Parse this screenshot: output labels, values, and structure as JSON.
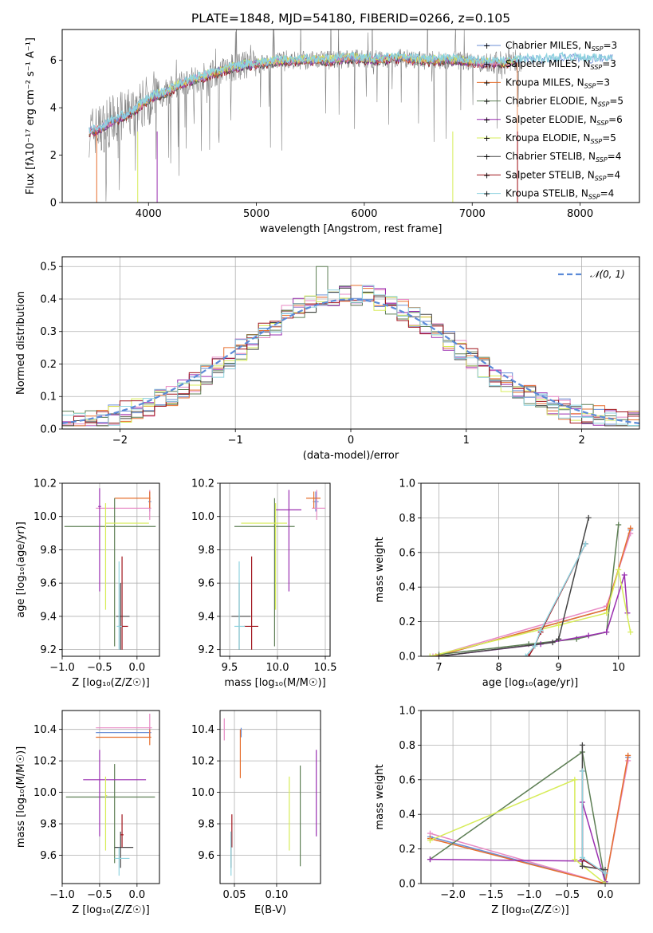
{
  "figure": {
    "title": "PLATE=1848, MJD=54180, FIBERID=0266, z=0.105",
    "colors": {
      "cm": "#6b8fd6",
      "sm": "#e88ac4",
      "km": "#e66f2e",
      "ce": "#5e7f55",
      "se": "#9a2fb0",
      "ke": "#d7ec58",
      "cs": "#454545",
      "ss": "#a0141c",
      "ks": "#8fd3df",
      "norm": "#5b8ad8"
    }
  },
  "chart_data": [
    {
      "id": "spectrum",
      "type": "line",
      "xlabel": "wavelength [Angstrom, rest frame]",
      "ylabel": "Flux [fλ10⁻¹⁷ erg cm⁻² s⁻¹ A⁻¹]",
      "xlim": [
        3200,
        8550
      ],
      "ylim": [
        0,
        7.3
      ],
      "xticks": [
        4000,
        5000,
        6000,
        7000,
        8000
      ],
      "yticks": [
        0,
        2,
        4,
        6
      ],
      "legend_position": "upper right",
      "legend": [
        "Chabrier MILES, N_SSP=3",
        "Salpeter MILES, N_SSP=3",
        "Kroupa MILES, N_SSP=3",
        "Chabrier ELODIE, N_SSP=5",
        "Salpeter ELODIE, N_SSP=6",
        "Kroupa ELODIE, N_SSP=5",
        "Chabrier STELIB, N_SSP=4",
        "Salpeter STELIB, N_SSP=4",
        "Kroupa STELIB, N_SSP=4"
      ],
      "legend_keys": [
        "cm",
        "sm",
        "km",
        "ce",
        "se",
        "ke",
        "cs",
        "ss",
        "ks"
      ],
      "observed_color": "#808080",
      "continuum": {
        "x": [
          3450,
          3550,
          3650,
          3750,
          3850,
          3950,
          4050,
          4150,
          4300,
          4500,
          4700,
          4900,
          5100,
          5300,
          5500,
          5700,
          5900,
          6100,
          6300,
          6500,
          6700,
          6900,
          7100,
          7300,
          7500,
          7700,
          7900,
          8100,
          8300
        ],
        "y": [
          3.0,
          3.1,
          3.4,
          3.6,
          3.8,
          4.2,
          4.5,
          4.6,
          5.0,
          5.3,
          5.6,
          5.8,
          5.9,
          6.0,
          6.0,
          6.0,
          6.1,
          6.0,
          6.1,
          6.0,
          6.0,
          6.0,
          5.9,
          5.9,
          6.0,
          6.0,
          6.1,
          6.0,
          6.1
        ]
      }
    },
    {
      "id": "residual_hist",
      "type": "bar",
      "xlabel": "(data-model)/error",
      "ylabel": "Normed distribution",
      "xlim": [
        -2.5,
        2.5
      ],
      "ylim": [
        0,
        0.53
      ],
      "xticks": [
        -2,
        -1,
        0,
        1,
        2
      ],
      "yticks": [
        0.0,
        0.1,
        0.2,
        0.3,
        0.4,
        0.5
      ],
      "bin_width": 0.1,
      "normal_label": "𝒩(0, 1)",
      "legend_position": "upper right"
    },
    {
      "id": "age_vs_Z",
      "type": "scatter",
      "xlabel": "Z [log₁₀(Z/Z☉)]",
      "ylabel": "age  [log₁₀(age/yr)]",
      "xlim": [
        -1.0,
        0.3
      ],
      "ylim": [
        9.16,
        10.2
      ],
      "xticks": [
        -1.0,
        -0.5,
        0.0
      ],
      "yticks": [
        9.2,
        9.4,
        9.6,
        9.8,
        10.0,
        10.2
      ],
      "points": [
        {
          "k": "cm",
          "x": 0.17,
          "y": 10.09,
          "xe": [
            0.15,
            0.19
          ],
          "ye": [
            10.03,
            10.15
          ]
        },
        {
          "k": "sm",
          "x": 0.17,
          "y": 10.05,
          "xe": [
            -0.55,
            0.19
          ],
          "ye": [
            9.98,
            10.16
          ]
        },
        {
          "k": "km",
          "x": 0.17,
          "y": 10.11,
          "xe": [
            -0.3,
            0.18
          ],
          "ye": [
            10.05,
            10.15
          ]
        },
        {
          "k": "ce",
          "x": -0.3,
          "y": 9.94,
          "xe": [
            -0.97,
            0.25
          ],
          "ye": [
            9.22,
            10.11
          ]
        },
        {
          "k": "se",
          "x": -0.5,
          "y": 10.06,
          "xe": [
            -0.52,
            -0.48
          ],
          "ye": [
            9.55,
            10.17
          ]
        },
        {
          "k": "ke",
          "x": -0.42,
          "y": 9.96,
          "xe": [
            -0.42,
            0.16
          ],
          "ye": [
            9.44,
            10.08
          ]
        },
        {
          "k": "cs",
          "x": -0.22,
          "y": 9.4,
          "xe": [
            -0.28,
            -0.1
          ],
          "ye": [
            9.2,
            9.6
          ]
        },
        {
          "k": "ss",
          "x": -0.2,
          "y": 9.34,
          "xe": [
            -0.25,
            -0.12
          ],
          "ye": [
            9.2,
            9.76
          ]
        },
        {
          "k": "ks",
          "x": -0.24,
          "y": 9.34,
          "xe": [
            -0.27,
            -0.2
          ],
          "ye": [
            9.2,
            9.73
          ]
        }
      ]
    },
    {
      "id": "age_vs_mass",
      "type": "scatter",
      "xlabel": "mass [log₁₀(M/M☉)]",
      "ylabel": "",
      "xlim": [
        9.4,
        10.55
      ],
      "ylim": [
        9.16,
        10.2
      ],
      "xticks": [
        9.5,
        10.0,
        10.5
      ],
      "yticks": [
        9.2,
        9.4,
        9.6,
        9.8,
        10.0,
        10.2
      ],
      "points": [
        {
          "k": "cm",
          "x": 10.4,
          "y": 10.09,
          "xe": [
            10.37,
            10.43
          ],
          "ye": [
            10.03,
            10.15
          ]
        },
        {
          "k": "sm",
          "x": 10.41,
          "y": 10.05,
          "xe": [
            10.36,
            10.5
          ],
          "ye": [
            9.98,
            10.16
          ]
        },
        {
          "k": "km",
          "x": 10.38,
          "y": 10.11,
          "xe": [
            10.3,
            10.45
          ],
          "ye": [
            10.05,
            10.15
          ]
        },
        {
          "k": "ce",
          "x": 9.97,
          "y": 9.94,
          "xe": [
            9.55,
            10.18
          ],
          "ye": [
            9.22,
            10.11
          ]
        },
        {
          "k": "se",
          "x": 10.12,
          "y": 10.04,
          "xe": [
            9.98,
            10.25
          ],
          "ye": [
            9.55,
            10.16
          ]
        },
        {
          "k": "ke",
          "x": 9.98,
          "y": 9.96,
          "xe": [
            9.62,
            10.1
          ],
          "ye": [
            9.44,
            10.08
          ]
        },
        {
          "k": "cs",
          "x": 9.6,
          "y": 9.4,
          "xe": [
            9.52,
            9.72
          ],
          "ye": [
            9.2,
            9.6
          ]
        },
        {
          "k": "ss",
          "x": 9.73,
          "y": 9.34,
          "xe": [
            9.65,
            9.8
          ],
          "ye": [
            9.2,
            9.76
          ]
        },
        {
          "k": "ks",
          "x": 9.6,
          "y": 9.34,
          "xe": [
            9.55,
            9.66
          ],
          "ye": [
            9.2,
            9.73
          ]
        }
      ]
    },
    {
      "id": "mass_weight_vs_age",
      "type": "line",
      "xlabel": "age  [log₁₀(age/yr)]",
      "ylabel": "mass weight",
      "xlim": [
        6.7,
        10.35
      ],
      "ylim": [
        0,
        1.0
      ],
      "xticks": [
        7,
        8,
        9,
        10
      ],
      "yticks": [
        0.0,
        0.2,
        0.4,
        0.6,
        0.8,
        1.0
      ],
      "grid": true,
      "series": [
        {
          "k": "cm",
          "x": [
            6.95,
            9.8,
            10.2
          ],
          "y": [
            0.0,
            0.27,
            0.73
          ]
        },
        {
          "k": "sm",
          "x": [
            6.9,
            9.8,
            10.2
          ],
          "y": [
            0.0,
            0.29,
            0.71
          ]
        },
        {
          "k": "km",
          "x": [
            6.95,
            9.8,
            10.2
          ],
          "y": [
            0.0,
            0.27,
            0.74
          ]
        },
        {
          "k": "ce",
          "x": [
            7.0,
            8.5,
            9.3,
            9.8,
            10.0
          ],
          "y": [
            0.01,
            0.07,
            0.1,
            0.14,
            0.76
          ]
        },
        {
          "k": "se",
          "x": [
            7.0,
            8.7,
            9.5,
            9.8,
            10.1,
            10.15
          ],
          "y": [
            0.0,
            0.07,
            0.12,
            0.14,
            0.47,
            0.25
          ]
        },
        {
          "k": "ke",
          "x": [
            6.85,
            9.0,
            9.8,
            10.0,
            10.2
          ],
          "y": [
            0.0,
            0.18,
            0.25,
            0.5,
            0.14
          ]
        },
        {
          "k": "cs",
          "x": [
            7.0,
            8.9,
            9.0,
            9.5
          ],
          "y": [
            0.0,
            0.08,
            0.1,
            0.8
          ]
        },
        {
          "k": "ss",
          "x": [
            8.5,
            8.6,
            8.7,
            9.45
          ],
          "y": [
            0.0,
            0.06,
            0.14,
            0.65
          ]
        },
        {
          "k": "ks",
          "x": [
            8.45,
            8.6,
            8.7,
            9.45
          ],
          "y": [
            0.0,
            0.06,
            0.15,
            0.65
          ]
        }
      ]
    },
    {
      "id": "mass_vs_Z",
      "type": "scatter",
      "xlabel": "Z [log₁₀(Z/Z☉)]",
      "ylabel": "mass [log₁₀(M/M☉)]",
      "xlim": [
        -1.0,
        0.3
      ],
      "ylim": [
        9.42,
        10.52
      ],
      "xticks": [
        -1.0,
        -0.5,
        0.0
      ],
      "yticks": [
        9.6,
        9.8,
        10.0,
        10.2,
        10.4
      ],
      "points": [
        {
          "k": "cm",
          "x": 0.17,
          "y": 10.38,
          "xe": [
            -0.55,
            0.19
          ],
          "ye": [
            10.35,
            10.41
          ]
        },
        {
          "k": "sm",
          "x": 0.17,
          "y": 10.41,
          "xe": [
            -0.55,
            0.2
          ],
          "ye": [
            10.36,
            10.5
          ]
        },
        {
          "k": "km",
          "x": 0.17,
          "y": 10.35,
          "xe": [
            -0.55,
            0.19
          ],
          "ye": [
            10.3,
            10.4
          ]
        },
        {
          "k": "ce",
          "x": -0.3,
          "y": 9.97,
          "xe": [
            -0.95,
            0.24
          ],
          "ye": [
            9.55,
            10.18
          ]
        },
        {
          "k": "se",
          "x": -0.5,
          "y": 10.08,
          "xe": [
            -0.72,
            0.12
          ],
          "ye": [
            9.72,
            10.27
          ]
        },
        {
          "k": "ke",
          "x": -0.42,
          "y": 9.98,
          "xe": [
            -0.42,
            -0.4
          ],
          "ye": [
            9.63,
            10.1
          ]
        },
        {
          "k": "cs",
          "x": -0.22,
          "y": 9.65,
          "xe": [
            -0.3,
            -0.05
          ],
          "ye": [
            9.52,
            9.75
          ]
        },
        {
          "k": "ss",
          "x": -0.2,
          "y": 9.73,
          "xe": [
            -0.22,
            -0.18
          ],
          "ye": [
            9.65,
            9.86
          ]
        },
        {
          "k": "ks",
          "x": -0.24,
          "y": 9.58,
          "xe": [
            -0.3,
            -0.1
          ],
          "ye": [
            9.47,
            9.65
          ]
        }
      ]
    },
    {
      "id": "mass_vs_ebv",
      "type": "scatter",
      "xlabel": "E(B-V)",
      "ylabel": "",
      "xlim": [
        0.033,
        0.152
      ],
      "ylim": [
        9.42,
        10.52
      ],
      "xticks": [
        0.05,
        0.1
      ],
      "yticks": [
        9.6,
        9.8,
        10.0,
        10.2,
        10.4
      ],
      "points": [
        {
          "k": "cm",
          "x": 0.058,
          "y": 10.38,
          "ye": [
            10.35,
            10.41
          ]
        },
        {
          "k": "sm",
          "x": 0.038,
          "y": 10.41,
          "ye": [
            10.33,
            10.47
          ]
        },
        {
          "k": "km",
          "x": 0.057,
          "y": 10.35,
          "ye": [
            10.09,
            10.4
          ]
        },
        {
          "k": "ce",
          "x": 0.128,
          "y": 9.97,
          "ye": [
            9.53,
            10.17
          ]
        },
        {
          "k": "se",
          "x": 0.147,
          "y": 10.08,
          "ye": [
            9.72,
            10.27
          ]
        },
        {
          "k": "ke",
          "x": 0.115,
          "y": 9.98,
          "ye": [
            9.63,
            10.1
          ]
        },
        {
          "k": "cs",
          "x": 0.046,
          "y": 9.65,
          "ye": [
            9.52,
            9.75
          ]
        },
        {
          "k": "ss",
          "x": 0.047,
          "y": 9.73,
          "ye": [
            9.65,
            9.86
          ]
        },
        {
          "k": "ks",
          "x": 0.046,
          "y": 9.58,
          "ye": [
            9.47,
            9.75
          ]
        }
      ]
    },
    {
      "id": "mass_weight_vs_Z",
      "type": "line",
      "xlabel": "Z [log₁₀(Z/Z☉)]",
      "ylabel": "mass weight",
      "xlim": [
        -2.42,
        0.45
      ],
      "ylim": [
        0,
        1.0
      ],
      "xticks": [
        -2.0,
        -1.5,
        -1.0,
        -0.5,
        0.0
      ],
      "yticks": [
        0.0,
        0.2,
        0.4,
        0.6,
        0.8,
        1.0
      ],
      "grid": true,
      "series": [
        {
          "k": "cm",
          "x": [
            -2.3,
            0.0,
            0.3
          ],
          "y": [
            0.27,
            0.0,
            0.73
          ]
        },
        {
          "k": "sm",
          "x": [
            -2.3,
            0.0,
            0.3
          ],
          "y": [
            0.29,
            0.0,
            0.71
          ]
        },
        {
          "k": "km",
          "x": [
            -2.3,
            0.0,
            0.3
          ],
          "y": [
            0.26,
            0.0,
            0.74
          ]
        },
        {
          "k": "ce",
          "x": [
            -2.3,
            -0.3,
            0.0
          ],
          "y": [
            0.14,
            0.76,
            0.01
          ]
        },
        {
          "k": "se",
          "x": [
            -2.3,
            -0.3,
            -0.3,
            0.0
          ],
          "y": [
            0.14,
            0.13,
            0.47,
            0.01
          ]
        },
        {
          "k": "ke",
          "x": [
            -2.3,
            -0.4,
            -0.4,
            0.0
          ],
          "y": [
            0.25,
            0.6,
            0.14,
            0.0
          ]
        },
        {
          "k": "cs",
          "x": [
            -0.3,
            -0.3,
            0.0
          ],
          "y": [
            0.8,
            0.1,
            0.08
          ]
        },
        {
          "k": "ss",
          "x": [
            -0.3,
            -0.3,
            0.0
          ],
          "y": [
            0.65,
            0.14,
            0.06
          ]
        },
        {
          "k": "ks",
          "x": [
            -0.3,
            -0.3,
            0.0
          ],
          "y": [
            0.65,
            0.15,
            0.06
          ]
        }
      ]
    }
  ]
}
